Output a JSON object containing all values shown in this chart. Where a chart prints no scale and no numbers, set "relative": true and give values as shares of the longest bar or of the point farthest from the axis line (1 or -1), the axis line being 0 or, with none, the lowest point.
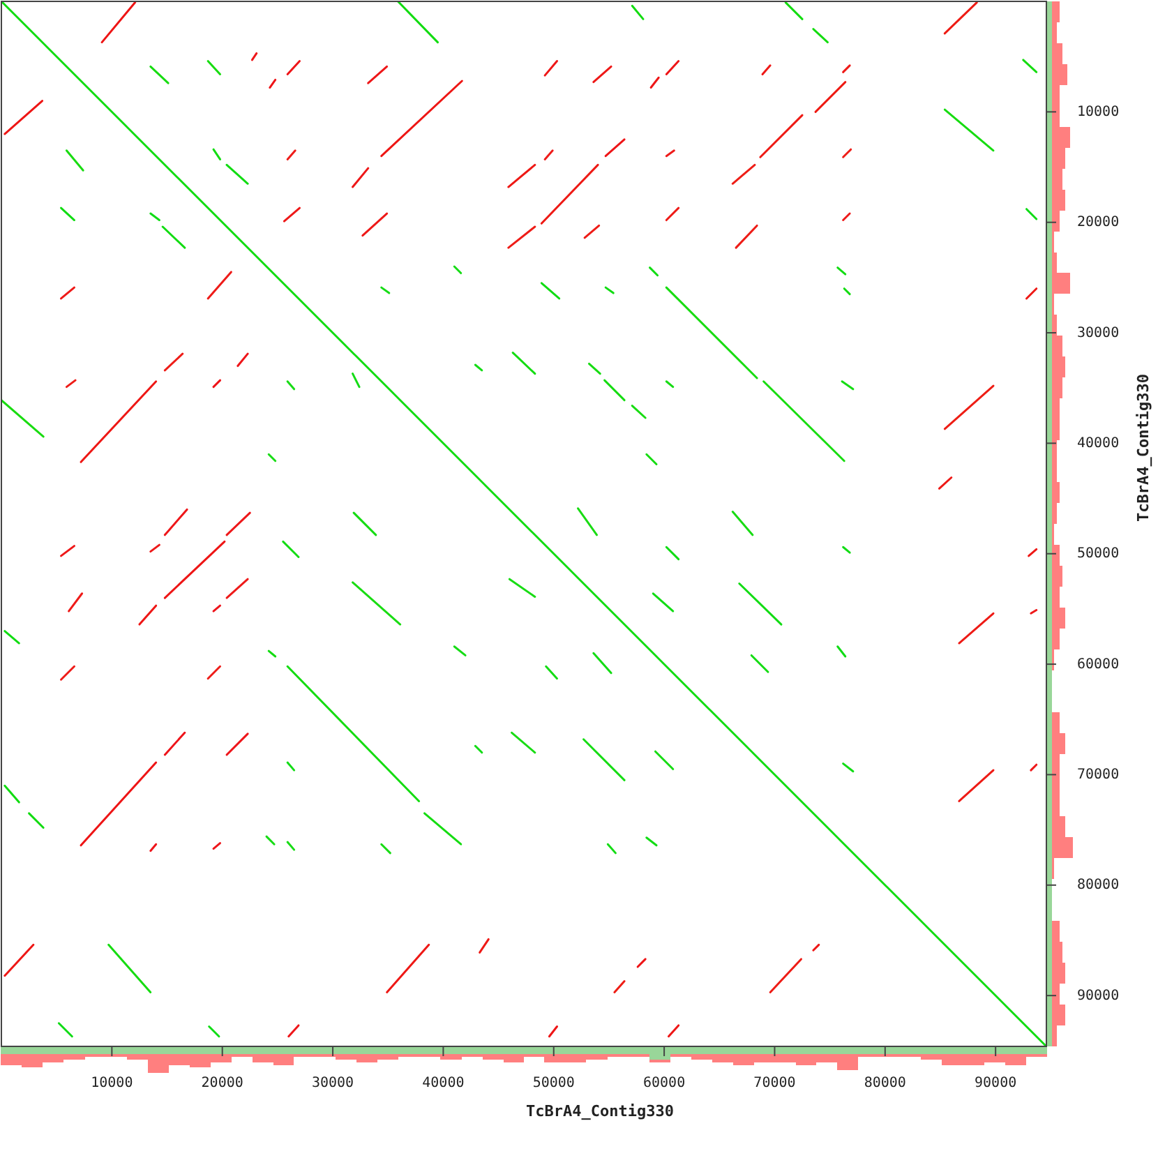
{
  "chart_data": [
    {
      "type": "line",
      "xlabel": "TcBrA4_Contig330",
      "ylabel": "TcBrA4_Contig330",
      "xlim": [
        0,
        94600
      ],
      "ylim": [
        94600,
        0
      ],
      "tick_labels": "y",
      "xticks": [
        10000,
        20000,
        30000,
        40000,
        50000,
        60000,
        70000,
        80000,
        90000
      ],
      "yticks": [
        10000,
        20000,
        30000,
        40000,
        50000,
        60000,
        70000,
        80000,
        90000
      ],
      "series": [
        {
          "color": "#10dc10",
          "x": [
            0,
            94600
          ],
          "values": [
            0,
            94600
          ]
        },
        {
          "color": "#11dc10",
          "x": [
            35900,
            39500
          ],
          "values": [
            0,
            3700
          ]
        },
        {
          "color": "#12dc10",
          "x": [
            57100,
            58100
          ],
          "values": [
            400,
            1600
          ]
        },
        {
          "color": "#13dc10",
          "x": [
            71000,
            72500
          ],
          "values": [
            100,
            1600
          ]
        },
        {
          "color": "#14dc10",
          "x": [
            73500,
            74800
          ],
          "values": [
            2500,
            3700
          ]
        },
        {
          "color": "#15dc10",
          "x": [
            92500,
            93700
          ],
          "values": [
            5300,
            6400
          ]
        },
        {
          "color": "#16dc10",
          "x": [
            85400,
            89800
          ],
          "values": [
            9800,
            13500
          ]
        },
        {
          "color": "#17dc10",
          "x": [
            60200,
            68400
          ],
          "values": [
            25900,
            34100
          ]
        },
        {
          "color": "#18dc10",
          "x": [
            69000,
            76300
          ],
          "values": [
            34400,
            41600
          ]
        },
        {
          "color": "#19dc10",
          "x": [
            0,
            3800
          ],
          "values": [
            36100,
            39400
          ]
        },
        {
          "color": "#10dc11",
          "x": [
            300,
            1600
          ],
          "values": [
            57000,
            58100
          ]
        },
        {
          "color": "#11dc11",
          "x": [
            300,
            1600
          ],
          "values": [
            71000,
            72500
          ]
        },
        {
          "color": "#12dc11",
          "x": [
            2500,
            3800
          ],
          "values": [
            73500,
            74800
          ]
        },
        {
          "color": "#13dc11",
          "x": [
            24200,
            24800
          ],
          "values": [
            58800,
            59300
          ]
        },
        {
          "color": "#14dc11",
          "x": [
            25900,
            37800
          ],
          "values": [
            60200,
            72400
          ]
        },
        {
          "color": "#15dc11",
          "x": [
            38300,
            41600
          ],
          "values": [
            73500,
            76300
          ]
        },
        {
          "color": "#16dc11",
          "x": [
            9700,
            13500
          ],
          "values": [
            85400,
            89700
          ]
        },
        {
          "color": "#17dc11",
          "x": [
            13500,
            15100
          ],
          "values": [
            5900,
            7400
          ]
        },
        {
          "color": "#18dc11",
          "x": [
            18700,
            19800
          ],
          "values": [
            5400,
            6600
          ]
        },
        {
          "color": "#19dc11",
          "x": [
            5900,
            7400
          ],
          "values": [
            13500,
            15300
          ]
        },
        {
          "color": "#10dc12",
          "x": [
            5400,
            6600
          ],
          "values": [
            18700,
            19800
          ]
        },
        {
          "color": "#11dc12",
          "x": [
            20400,
            22300
          ],
          "values": [
            14800,
            16500
          ]
        },
        {
          "color": "#12dc12",
          "x": [
            14600,
            16600
          ],
          "values": [
            20400,
            22300
          ]
        },
        {
          "color": "#13dc12",
          "x": [
            19200,
            19800
          ],
          "values": [
            13400,
            14300
          ]
        },
        {
          "color": "#14dc12",
          "x": [
            46300,
            48300
          ],
          "values": [
            31800,
            33700
          ]
        },
        {
          "color": "#15dc12",
          "x": [
            31900,
            33900
          ],
          "values": [
            46300,
            48300
          ]
        },
        {
          "color": "#16dc12",
          "x": [
            54600,
            56400
          ],
          "values": [
            34300,
            36100
          ]
        },
        {
          "color": "#17dc12",
          "x": [
            53200,
            54200
          ],
          "values": [
            32800,
            33700
          ]
        },
        {
          "color": "#18dc12",
          "x": [
            57100,
            58300
          ],
          "values": [
            36600,
            37700
          ]
        },
        {
          "color": "#19dc12",
          "x": [
            31800,
            36100
          ],
          "values": [
            52600,
            56400
          ]
        },
        {
          "color": "#10dc13",
          "x": [
            48900,
            50500
          ],
          "values": [
            25500,
            26900
          ]
        },
        {
          "color": "#11dc13",
          "x": [
            58700,
            59400
          ],
          "values": [
            24100,
            24800
          ]
        },
        {
          "color": "#12dc13",
          "x": [
            54700,
            55400
          ],
          "values": [
            25900,
            26400
          ]
        },
        {
          "color": "#13dc13",
          "x": [
            75700,
            76400
          ],
          "values": [
            24100,
            24700
          ]
        },
        {
          "color": "#14dc13",
          "x": [
            76300,
            76800
          ],
          "values": [
            26000,
            26500
          ]
        },
        {
          "color": "#15dc13",
          "x": [
            76100,
            77100
          ],
          "values": [
            34400,
            35100
          ]
        },
        {
          "color": "#16dc13",
          "x": [
            60200,
            60800
          ],
          "values": [
            34400,
            34900
          ]
        },
        {
          "color": "#17dc13",
          "x": [
            58400,
            59300
          ],
          "values": [
            41000,
            41900
          ]
        },
        {
          "color": "#18dc13",
          "x": [
            66200,
            68000
          ],
          "values": [
            46200,
            48300
          ]
        },
        {
          "color": "#19dc13",
          "x": [
            52200,
            53900
          ],
          "values": [
            45900,
            48300
          ]
        },
        {
          "color": "#10dc14",
          "x": [
            60200,
            61300
          ],
          "values": [
            49400,
            50500
          ]
        },
        {
          "color": "#11dc14",
          "x": [
            59000,
            60800
          ],
          "values": [
            53600,
            55200
          ]
        },
        {
          "color": "#12dc14",
          "x": [
            66800,
            70600
          ],
          "values": [
            52700,
            56400
          ]
        },
        {
          "color": "#13dc14",
          "x": [
            53600,
            55200
          ],
          "values": [
            59000,
            60800
          ]
        },
        {
          "color": "#14dc14",
          "x": [
            49300,
            50300
          ],
          "values": [
            60200,
            61300
          ]
        },
        {
          "color": "#15dc14",
          "x": [
            67900,
            69400
          ],
          "values": [
            59200,
            60700
          ]
        },
        {
          "color": "#16dc14",
          "x": [
            52700,
            56400
          ],
          "values": [
            66800,
            70500
          ]
        },
        {
          "color": "#17dc14",
          "x": [
            59200,
            60800
          ],
          "values": [
            67900,
            69500
          ]
        },
        {
          "color": "#18dc14",
          "x": [
            46000,
            48300
          ],
          "values": [
            52300,
            53900
          ]
        },
        {
          "color": "#19dc14",
          "x": [
            46200,
            48300
          ],
          "values": [
            66200,
            68000
          ]
        },
        {
          "color": "#10dc15",
          "x": [
            75700,
            76400
          ],
          "values": [
            58400,
            59300
          ]
        },
        {
          "color": "#11dc15",
          "x": [
            76200,
            77100
          ],
          "values": [
            69000,
            69700
          ]
        },
        {
          "color": "#12dc15",
          "x": [
            76200,
            76800
          ],
          "values": [
            49400,
            49900
          ]
        },
        {
          "color": "#13dc15",
          "x": [
            58400,
            59300
          ],
          "values": [
            75700,
            76400
          ]
        },
        {
          "color": "#14dc15",
          "x": [
            54900,
            55600
          ],
          "values": [
            76300,
            77100
          ]
        },
        {
          "color": "#15dc15",
          "x": [
            25500,
            26900
          ],
          "values": [
            48900,
            50300
          ]
        },
        {
          "color": "#16dc15",
          "x": [
            41000,
            42000
          ],
          "values": [
            58400,
            59200
          ]
        },
        {
          "color": "#17dc15",
          "x": [
            24000,
            24700
          ],
          "values": [
            75600,
            76300
          ]
        },
        {
          "color": "#18dc15",
          "x": [
            25900,
            26500
          ],
          "values": [
            76100,
            76800
          ]
        },
        {
          "color": "#19dc15",
          "x": [
            34400,
            35200
          ],
          "values": [
            76300,
            77100
          ]
        },
        {
          "color": "#10dc16",
          "x": [
            5200,
            6400
          ],
          "values": [
            92500,
            93700
          ]
        },
        {
          "color": "#11dc16",
          "x": [
            18800,
            19700
          ],
          "values": [
            92800,
            93700
          ]
        },
        {
          "color": "#12dc16",
          "x": [
            25900,
            26500
          ],
          "values": [
            68900,
            69600
          ]
        },
        {
          "color": "#13dc16",
          "x": [
            42900,
            43500
          ],
          "values": [
            67400,
            68000
          ]
        },
        {
          "color": "#14dc16",
          "x": [
            42900,
            43500
          ],
          "values": [
            32900,
            33400
          ]
        },
        {
          "color": "#15dc16",
          "x": [
            31800,
            32400
          ],
          "values": [
            33700,
            34900
          ]
        },
        {
          "color": "#16dc16",
          "x": [
            34400,
            35100
          ],
          "values": [
            25900,
            26400
          ]
        },
        {
          "color": "#17dc16",
          "x": [
            41000,
            41600
          ],
          "values": [
            24000,
            24600
          ]
        },
        {
          "color": "#18dc16",
          "x": [
            25900,
            26500
          ],
          "values": [
            34400,
            35100
          ]
        },
        {
          "color": "#19dc16",
          "x": [
            24200,
            24800
          ],
          "values": [
            41000,
            41600
          ]
        },
        {
          "color": "#10dc17",
          "x": [
            92800,
            93700
          ],
          "values": [
            18800,
            19700
          ]
        },
        {
          "color": "#11dc17",
          "x": [
            13500,
            14300
          ],
          "values": [
            19200,
            19800
          ]
        },
        {
          "color": "#ee1414",
          "x": [
            9100,
            12100
          ],
          "values": [
            3700,
            100
          ]
        },
        {
          "color": "#ee1514",
          "x": [
            300,
            3700
          ],
          "values": [
            12000,
            9000
          ]
        },
        {
          "color": "#ee1614",
          "x": [
            34400,
            41700
          ],
          "values": [
            14000,
            7200
          ]
        },
        {
          "color": "#ee1714",
          "x": [
            7200,
            14000
          ],
          "values": [
            41700,
            34400
          ]
        },
        {
          "color": "#ee1814",
          "x": [
            45900,
            48300
          ],
          "values": [
            16800,
            14800
          ]
        },
        {
          "color": "#ee1914",
          "x": [
            48900,
            54000
          ],
          "values": [
            20100,
            14800
          ]
        },
        {
          "color": "#ee1a14",
          "x": [
            68700,
            72500
          ],
          "values": [
            14100,
            10300
          ]
        },
        {
          "color": "#ee1b14",
          "x": [
            73700,
            76400
          ],
          "values": [
            10000,
            7300
          ]
        },
        {
          "color": "#ee1c14",
          "x": [
            85400,
            88300
          ],
          "values": [
            2900,
            100
          ]
        },
        {
          "color": "#ee1d14",
          "x": [
            85400,
            89800
          ],
          "values": [
            38700,
            34800
          ]
        },
        {
          "color": "#ee1415",
          "x": [
            7200,
            14000
          ],
          "values": [
            76400,
            68900
          ]
        },
        {
          "color": "#ee1515",
          "x": [
            14800,
            20200
          ],
          "values": [
            54000,
            48900
          ]
        },
        {
          "color": "#ee1615",
          "x": [
            12500,
            14000
          ],
          "values": [
            56400,
            54700
          ]
        },
        {
          "color": "#ee1715",
          "x": [
            300,
            2900
          ],
          "values": [
            88200,
            85400
          ]
        },
        {
          "color": "#ee1815",
          "x": [
            34900,
            38700
          ],
          "values": [
            89700,
            85400
          ]
        },
        {
          "color": "#ee1915",
          "x": [
            43300,
            44100
          ],
          "values": [
            86100,
            84900
          ]
        },
        {
          "color": "#ee1a15",
          "x": [
            86700,
            89800
          ],
          "values": [
            58100,
            55400
          ]
        },
        {
          "color": "#ee1b15",
          "x": [
            86700,
            89800
          ],
          "values": [
            72400,
            69600
          ]
        },
        {
          "color": "#ee1c15",
          "x": [
            69600,
            72400
          ],
          "values": [
            89700,
            86700
          ]
        },
        {
          "color": "#ee1d15",
          "x": [
            55500,
            56400
          ],
          "values": [
            89700,
            88700
          ]
        },
        {
          "color": "#ee1416",
          "x": [
            57600,
            58300
          ],
          "values": [
            87400,
            86700
          ]
        },
        {
          "color": "#ee1516",
          "x": [
            49600,
            50300
          ],
          "values": [
            93700,
            92800
          ]
        },
        {
          "color": "#ee1616",
          "x": [
            60400,
            61300
          ],
          "values": [
            93700,
            92700
          ]
        },
        {
          "color": "#ee1716",
          "x": [
            73500,
            74000
          ],
          "values": [
            85900,
            85400
          ]
        },
        {
          "color": "#ee1816",
          "x": [
            93000,
            93700
          ],
          "values": [
            50200,
            49600
          ]
        },
        {
          "color": "#ee1916",
          "x": [
            84900,
            86000
          ],
          "values": [
            44100,
            43100
          ]
        },
        {
          "color": "#ee1a16",
          "x": [
            92800,
            93700
          ],
          "values": [
            26900,
            26000
          ]
        },
        {
          "color": "#ee1b16",
          "x": [
            52800,
            54100
          ],
          "values": [
            21400,
            20300
          ]
        },
        {
          "color": "#ee1c16",
          "x": [
            66500,
            68400
          ],
          "values": [
            22300,
            20300
          ]
        },
        {
          "color": "#ee1d16",
          "x": [
            66200,
            68200
          ],
          "values": [
            16500,
            14800
          ]
        },
        {
          "color": "#ee1417",
          "x": [
            54700,
            56400
          ],
          "values": [
            14000,
            12500
          ]
        },
        {
          "color": "#ee1517",
          "x": [
            60200,
            61300
          ],
          "values": [
            6600,
            5400
          ]
        },
        {
          "color": "#ee1617",
          "x": [
            58800,
            59500
          ],
          "values": [
            7800,
            6900
          ]
        },
        {
          "color": "#ee1717",
          "x": [
            49200,
            50300
          ],
          "values": [
            6700,
            5400
          ]
        },
        {
          "color": "#ee1817",
          "x": [
            53600,
            55200
          ],
          "values": [
            7300,
            5900
          ]
        },
        {
          "color": "#ee1917",
          "x": [
            68900,
            69600
          ],
          "values": [
            6600,
            5800
          ]
        },
        {
          "color": "#ee1a17",
          "x": [
            76200,
            76800
          ],
          "values": [
            6400,
            5800
          ]
        },
        {
          "color": "#ee1b17",
          "x": [
            60200,
            61300
          ],
          "values": [
            19800,
            18700
          ]
        },
        {
          "color": "#ee1c17",
          "x": [
            45900,
            48300
          ],
          "values": [
            22300,
            20400
          ]
        },
        {
          "color": "#ee1d17",
          "x": [
            76200,
            76900
          ],
          "values": [
            14100,
            13400
          ]
        },
        {
          "color": "#ee1418",
          "x": [
            24300,
            24800
          ],
          "values": [
            7800,
            7100
          ]
        },
        {
          "color": "#ee1518",
          "x": [
            25900,
            27000
          ],
          "values": [
            6600,
            5400
          ]
        },
        {
          "color": "#ee1618",
          "x": [
            33200,
            34900
          ],
          "values": [
            7400,
            5900
          ]
        },
        {
          "color": "#ee1718",
          "x": [
            31800,
            33200
          ],
          "values": [
            16800,
            15100
          ]
        },
        {
          "color": "#ee1818",
          "x": [
            25600,
            27000
          ],
          "values": [
            19900,
            18700
          ]
        },
        {
          "color": "#ee1918",
          "x": [
            32700,
            34900
          ],
          "values": [
            21200,
            19200
          ]
        },
        {
          "color": "#ee1a18",
          "x": [
            5400,
            6600
          ],
          "values": [
            26900,
            25900
          ]
        },
        {
          "color": "#ee1b18",
          "x": [
            18700,
            20800
          ],
          "values": [
            26900,
            24500
          ]
        },
        {
          "color": "#ee1c18",
          "x": [
            5900,
            6700
          ],
          "values": [
            34900,
            34300
          ]
        },
        {
          "color": "#ee1d18",
          "x": [
            14800,
            16400
          ],
          "values": [
            33400,
            31900
          ]
        },
        {
          "color": "#ee1419",
          "x": [
            19200,
            19800
          ],
          "values": [
            34900,
            34300
          ]
        },
        {
          "color": "#ee1519",
          "x": [
            21400,
            22300
          ],
          "values": [
            33000,
            31900
          ]
        },
        {
          "color": "#ee1619",
          "x": [
            14800,
            16800
          ],
          "values": [
            48300,
            46000
          ]
        },
        {
          "color": "#ee1719",
          "x": [
            20400,
            22500
          ],
          "values": [
            48300,
            46300
          ]
        },
        {
          "color": "#ee1819",
          "x": [
            5400,
            6600
          ],
          "values": [
            50200,
            49300
          ]
        },
        {
          "color": "#ee1919",
          "x": [
            13500,
            14300
          ],
          "values": [
            49800,
            49200
          ]
        },
        {
          "color": "#ee1a19",
          "x": [
            20400,
            22300
          ],
          "values": [
            54000,
            52300
          ]
        },
        {
          "color": "#ee1b19",
          "x": [
            6100,
            7300
          ],
          "values": [
            55200,
            53600
          ]
        },
        {
          "color": "#ee1c19",
          "x": [
            5400,
            6600
          ],
          "values": [
            61400,
            60200
          ]
        },
        {
          "color": "#ee1d19",
          "x": [
            18700,
            19800
          ],
          "values": [
            61300,
            60200
          ]
        },
        {
          "color": "#ee141a",
          "x": [
            14800,
            16600
          ],
          "values": [
            68200,
            66200
          ]
        },
        {
          "color": "#ee151a",
          "x": [
            20400,
            22300
          ],
          "values": [
            68200,
            66300
          ]
        },
        {
          "color": "#ee161a",
          "x": [
            26000,
            26900
          ],
          "values": [
            93700,
            92700
          ]
        },
        {
          "color": "#ee171a",
          "x": [
            22700,
            23100
          ],
          "values": [
            5300,
            4700
          ]
        },
        {
          "color": "#ee181a",
          "x": [
            93200,
            93700
          ],
          "values": [
            69600,
            69100
          ]
        },
        {
          "color": "#ee191a",
          "x": [
            93200,
            93700
          ],
          "values": [
            55400,
            55100
          ]
        },
        {
          "color": "#ee1a1a",
          "x": [
            76200,
            76800
          ],
          "values": [
            19800,
            19200
          ]
        },
        {
          "color": "#ee1b1a",
          "x": [
            60200,
            60900
          ],
          "values": [
            14000,
            13500
          ]
        },
        {
          "color": "#ee1c1a",
          "x": [
            49200,
            49900
          ],
          "values": [
            14300,
            13500
          ]
        },
        {
          "color": "#ee1d1a",
          "x": [
            25900,
            26600
          ],
          "values": [
            14300,
            13500
          ]
        },
        {
          "color": "#ee141b",
          "x": [
            19200,
            19800
          ],
          "values": [
            55200,
            54700
          ]
        },
        {
          "color": "#ee151b",
          "x": [
            13500,
            14000
          ],
          "values": [
            76900,
            76300
          ]
        },
        {
          "color": "#ee161b",
          "x": [
            19200,
            19800
          ],
          "values": [
            76700,
            76200
          ]
        }
      ]
    },
    {
      "type": "bar",
      "relative": true,
      "stacked": true,
      "xlim": [
        0,
        94600
      ],
      "tick_labels": "x",
      "xticks": [
        10000,
        20000,
        30000,
        40000,
        50000,
        60000,
        70000,
        80000,
        90000
      ],
      "x": [
        900,
        2800,
        4700,
        6600,
        8500,
        10400,
        12300,
        14200,
        16100,
        18000,
        19900,
        21800,
        23700,
        25500,
        27400,
        29300,
        31200,
        33100,
        35000,
        36900,
        38800,
        40700,
        42600,
        44500,
        46400,
        48200,
        50100,
        52000,
        53900,
        55800,
        57700,
        59600,
        61500,
        63400,
        65300,
        67200,
        69100,
        71000,
        72800,
        74700,
        76600,
        78500,
        80400,
        82300,
        84200,
        86100,
        88000,
        89900,
        91800,
        93700
      ],
      "series": [
        {
          "color": "#99d699",
          "values": [
            -0.3,
            -0.3,
            -0.3,
            -0.3,
            -0.3,
            -0.3,
            -0.3,
            -0.3,
            -0.3,
            -0.3,
            -0.3,
            -0.3,
            -0.3,
            -0.3,
            -0.3,
            -0.3,
            -0.3,
            -0.3,
            -0.3,
            -0.3,
            -0.3,
            -0.3,
            -0.3,
            -0.3,
            -0.3,
            -0.3,
            -0.3,
            -0.3,
            -0.3,
            -0.3,
            -0.3,
            -0.5,
            -0.3,
            -0.3,
            -0.3,
            -0.3,
            -0.3,
            -0.3,
            -0.3,
            -0.3,
            -0.3,
            -0.3,
            -0.3,
            -0.3,
            -0.3,
            -0.3,
            -0.3,
            -0.3,
            -0.3,
            -0.3
          ]
        },
        {
          "color": "#ff7f7f",
          "values": [
            -0.4,
            -0.5,
            -0.3,
            -0.2,
            -0.1,
            -0.1,
            -0.2,
            -0.7,
            -0.4,
            -0.5,
            -0.3,
            -0.1,
            -0.3,
            -0.4,
            -0.1,
            -0.1,
            -0.2,
            -0.3,
            -0.2,
            -0.1,
            -0.1,
            -0.2,
            -0.1,
            -0.2,
            -0.3,
            -0.1,
            -0.3,
            -0.3,
            -0.2,
            -0.1,
            -0.1,
            -0.1,
            -0.1,
            -0.2,
            -0.3,
            -0.4,
            -0.3,
            -0.3,
            -0.4,
            -0.3,
            -0.6,
            -0.1,
            -0.1,
            -0.1,
            -0.2,
            -0.4,
            -0.4,
            -0.3,
            -0.4,
            -0.1
          ]
        }
      ]
    },
    {
      "type": "bar",
      "relative": true,
      "stacked": true,
      "orientation": "horizontal",
      "categories": [
        null,
        null,
        null,
        null,
        null,
        null,
        null,
        null,
        null,
        null,
        null,
        null,
        null,
        null,
        null,
        null,
        null,
        null,
        null,
        null,
        null,
        null,
        null,
        null,
        null,
        null,
        null,
        null,
        null,
        null,
        null,
        null,
        null,
        null,
        null,
        null,
        null,
        null,
        null,
        null,
        null,
        null,
        null,
        null,
        null,
        null,
        null,
        null,
        null,
        null
      ],
      "series": [
        {
          "color": "#99d699",
          "values": [
            0.2,
            0.2,
            0.2,
            0.2,
            0.2,
            0.2,
            0.2,
            0.2,
            0.2,
            0.2,
            0.2,
            0.2,
            0.2,
            0.2,
            0.2,
            0.2,
            0.2,
            0.2,
            0.2,
            0.2,
            0.2,
            0.2,
            0.2,
            0.2,
            0.2,
            0.2,
            0.2,
            0.2,
            0.2,
            0.2,
            0.2,
            0.2,
            0.2,
            0.2,
            0.2,
            0.2,
            0.2,
            0.2,
            0.2,
            0.2,
            0.2,
            0.2,
            0.2,
            0.2,
            0.2,
            0.2,
            0.2,
            0.2,
            0.2,
            0.2
          ]
        },
        {
          "color": "#ff7f7f",
          "values": [
            0.3,
            0.2,
            0.4,
            0.6,
            0.3,
            0.3,
            0.7,
            0.5,
            0.4,
            0.5,
            0.3,
            0.1,
            0.2,
            0.7,
            0.1,
            0.2,
            0.4,
            0.5,
            0.4,
            0.3,
            0.3,
            0.2,
            0.2,
            0.3,
            0.2,
            0.1,
            0.3,
            0.4,
            0.3,
            0.5,
            0.3,
            0.1,
            0,
            0,
            0.3,
            0.5,
            0.3,
            0.3,
            0.3,
            0.5,
            0.8,
            0.1,
            0,
            0,
            0.3,
            0.4,
            0.5,
            0.3,
            0.5,
            0.2
          ]
        }
      ]
    }
  ]
}
